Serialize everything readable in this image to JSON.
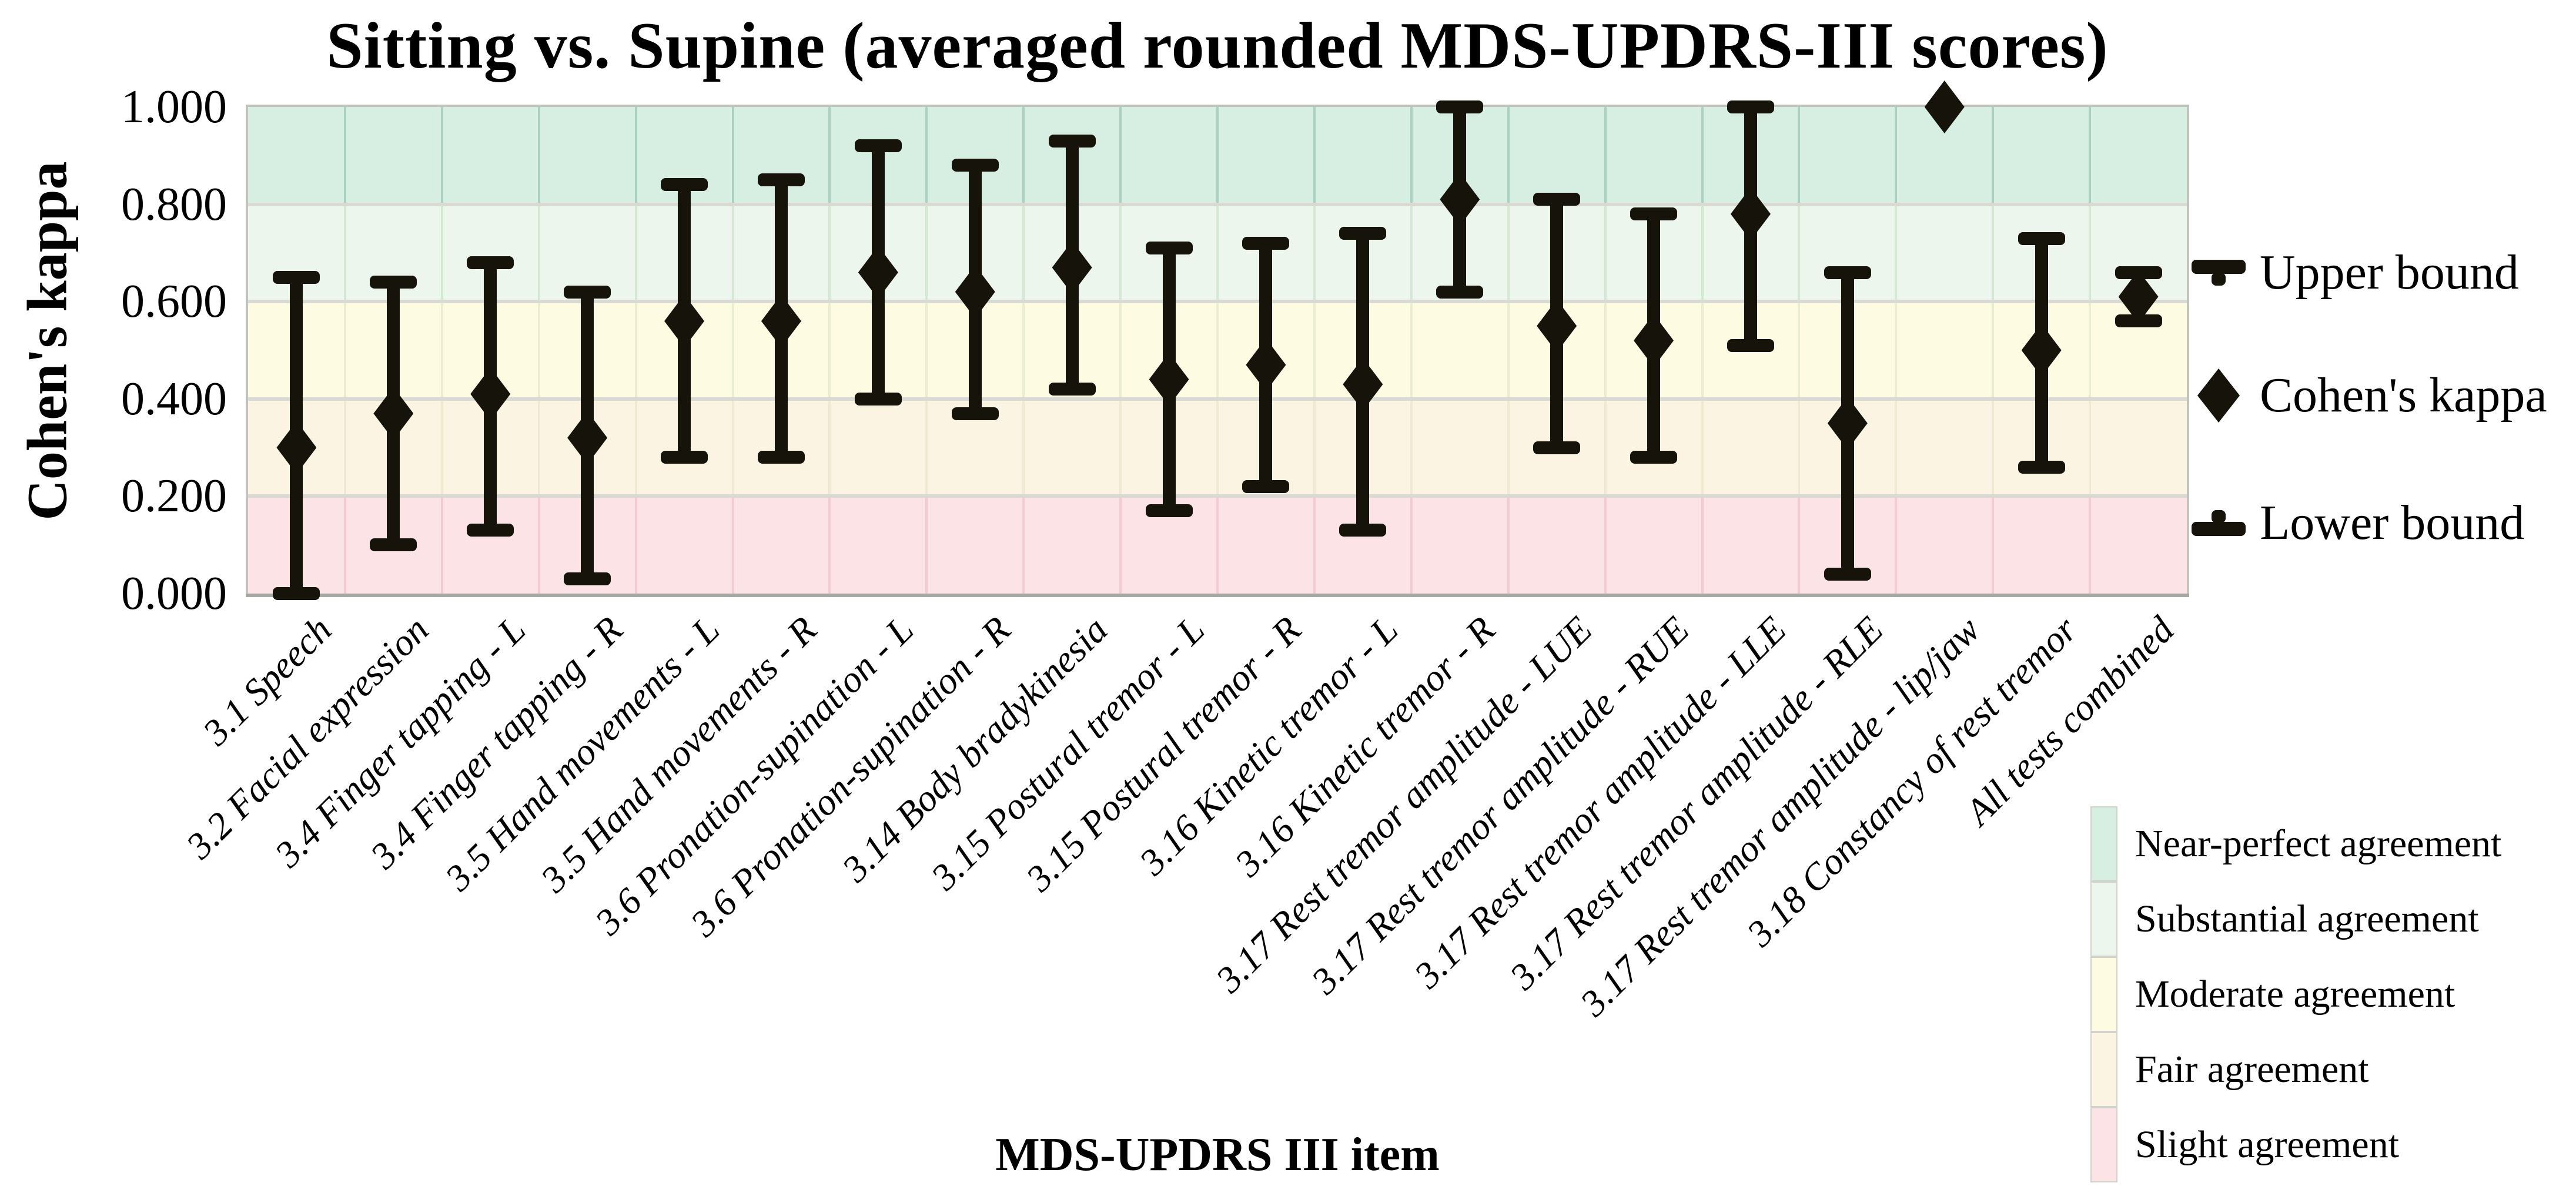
{
  "title": "Sitting vs. Supine (averaged rounded MDS-UPDRS-III scores)",
  "y_axis": {
    "label": "Cohen's kappa",
    "tick_labels": [
      "1.000",
      "0.800",
      "0.600",
      "0.400",
      "0.200",
      "0.000"
    ],
    "min": 0,
    "max": 1
  },
  "x_axis": {
    "label": "MDS-UPDRS III item"
  },
  "series_legend": [
    {
      "label": "Upper bound",
      "marker": "upper-bound-cap-icon"
    },
    {
      "label": "Cohen's kappa",
      "marker": "kappa-diamond-icon"
    },
    {
      "label": "Lower bound",
      "marker": "lower-bound-cap-icon"
    }
  ],
  "agreement_legend": [
    {
      "label": "Near-perfect agreement",
      "range": [
        0.8,
        1.0
      ],
      "color": "#d7efe3",
      "grid_color": "#aad0c2"
    },
    {
      "label": "Substantial agreement",
      "range": [
        0.6,
        0.8
      ],
      "color": "#edf6ec",
      "grid_color": "#d5e8d3"
    },
    {
      "label": "Moderate agreement",
      "range": [
        0.4,
        0.6
      ],
      "color": "#fdfce2",
      "grid_color": "#ebedd0"
    },
    {
      "label": "Fair agreement",
      "range": [
        0.2,
        0.4
      ],
      "color": "#fcf4e3",
      "grid_color": "#f2e9d2"
    },
    {
      "label": "Slight agreement",
      "range": [
        0.0,
        0.2
      ],
      "color": "#fbe3e6",
      "grid_color": "#f4cbd1"
    }
  ],
  "chart_data": {
    "type": "scatter",
    "title": "Sitting vs. Supine (averaged rounded MDS-UPDRS-III scores)",
    "xlabel": "MDS-UPDRS III item",
    "ylabel": "Cohen's kappa",
    "ylim": [
      0,
      1
    ],
    "grid": true,
    "legend_position": "right",
    "categories": [
      "3.1 Speech",
      "3.2 Facial expression",
      "3.4 Finger tapping - L",
      "3.4 Finger tapping - R",
      "3.5 Hand movements - L",
      "3.5 Hand movements - R",
      "3.6 Pronation-supination - L",
      "3.6 Pronation-supination - R",
      "3.14 Body bradykinesia",
      "3.15 Postural tremor - L",
      "3.15 Postural tremor - R",
      "3.16 Kinetic tremor - L",
      "3.16 Kinetic tremor - R",
      "3.17 Rest tremor amplitude - LUE",
      "3.17 Rest tremor amplitude - RUE",
      "3.17 Rest tremor amplitude - LLE",
      "3.17 Rest tremor amplitude - RLE",
      "3.17 Rest tremor amplitude - lip/jaw",
      "3.18 Constancy of rest tremor",
      "All tests combined"
    ],
    "series": [
      {
        "name": "Cohen's kappa",
        "values": [
          0.3,
          0.37,
          0.41,
          0.32,
          0.56,
          0.56,
          0.66,
          0.62,
          0.67,
          0.44,
          0.47,
          0.43,
          0.81,
          0.55,
          0.52,
          0.78,
          0.35,
          1.0,
          0.5,
          0.61
        ]
      },
      {
        "name": "Upper bound",
        "values": [
          0.65,
          0.64,
          0.68,
          0.62,
          0.84,
          0.85,
          0.92,
          0.88,
          0.93,
          0.71,
          0.72,
          0.74,
          1.0,
          0.81,
          0.78,
          1.0,
          0.66,
          null,
          0.73,
          0.66
        ]
      },
      {
        "name": "Lower bound",
        "values": [
          0.0,
          0.1,
          0.13,
          0.03,
          0.28,
          0.28,
          0.4,
          0.37,
          0.42,
          0.17,
          0.22,
          0.13,
          0.62,
          0.3,
          0.28,
          0.51,
          0.04,
          null,
          0.26,
          0.56
        ]
      }
    ]
  },
  "colors": {
    "marker": "#15130a",
    "plot_border": "#c3c3be",
    "axis_bottom": "#a9a9a4",
    "band_divider": "#dadad4",
    "background": "#ffffff",
    "text": "#000000"
  }
}
